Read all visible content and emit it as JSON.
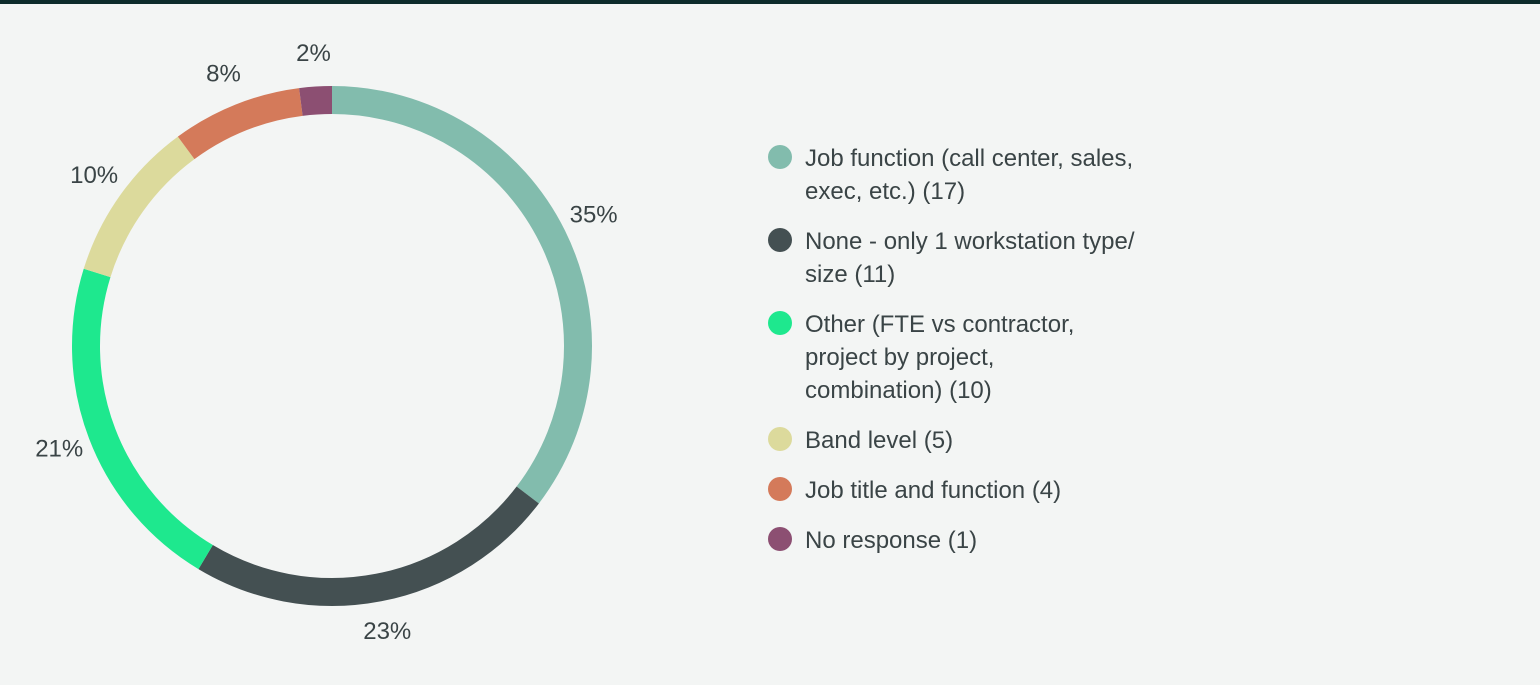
{
  "chart_data": {
    "type": "pie",
    "style": "donut",
    "legend_position": "right",
    "slices": [
      {
        "label": "Job function (call center, sales,\nexec, etc.) (17)",
        "value": 35,
        "value_label": "35%",
        "color": "#82bcad"
      },
      {
        "label": "None - only 1 workstation type/\nsize (11)",
        "value": 23,
        "value_label": "23%",
        "color": "#445052"
      },
      {
        "label": "Other (FTE vs contractor,\nproject by project,\ncombination) (10)",
        "value": 21,
        "value_label": "21%",
        "color": "#1ee88e"
      },
      {
        "label": "Band level (5)",
        "value": 10,
        "value_label": "10%",
        "color": "#dcda9c"
      },
      {
        "label": "Job title and function (4)",
        "value": 8,
        "value_label": "8%",
        "color": "#d47a5a"
      },
      {
        "label": "No response (1)",
        "value": 2,
        "value_label": "2%",
        "color": "#8c4f72"
      }
    ]
  }
}
